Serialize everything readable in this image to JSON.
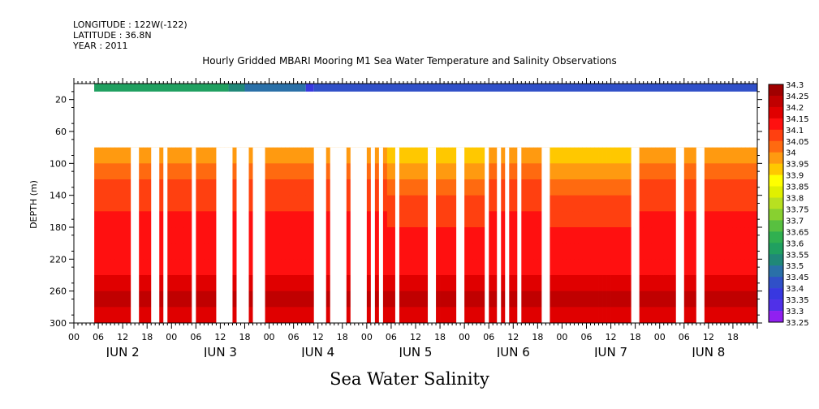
{
  "header": {
    "longitude": "LONGITUDE : 122W(-122)",
    "latitude": "LATITUDE : 36.8N",
    "year": "YEAR : 2011"
  },
  "chart_data": {
    "type": "heatmap",
    "title": "Hourly Gridded MBARI Mooring M1 Sea Water Temperature and Salinity Observations",
    "xlabel": "Sea Water Salinity",
    "ylabel": "DEPTH (m)",
    "ylim": [
      300,
      0
    ],
    "y_ticks": [
      20,
      60,
      100,
      140,
      180,
      220,
      260,
      300
    ],
    "x_start_hour": 0,
    "x_end_hour": 168,
    "x_hour_ticks": [
      0,
      6,
      12,
      18
    ],
    "x_days": [
      "JUN  2",
      "JUN  3",
      "JUN  4",
      "JUN  5",
      "JUN  6",
      "JUN  7",
      "JUN  8"
    ],
    "colorbar": {
      "levels": [
        34.3,
        34.25,
        34.2,
        34.15,
        34.1,
        34.05,
        34,
        33.95,
        33.9,
        33.85,
        33.8,
        33.75,
        33.7,
        33.65,
        33.6,
        33.55,
        33.5,
        33.45,
        33.4,
        33.35,
        33.3,
        33.25
      ],
      "colors": [
        "#a00000",
        "#c00000",
        "#e00000",
        "#ff1010",
        "#ff4010",
        "#ff6a10",
        "#ff9a10",
        "#ffc800",
        "#ffff00",
        "#e0f000",
        "#b8e020",
        "#88d030",
        "#58c040",
        "#30b050",
        "#20a060",
        "#208878",
        "#2a70a8",
        "#3050c8",
        "#3838e0",
        "#5030e8",
        "#9020f0",
        "#d000f0"
      ]
    },
    "surface_start_hour": 5,
    "deep_start_depth": 80,
    "surface_depth_range": [
      0,
      10
    ],
    "surface_layer": [
      {
        "from": 5,
        "to": 38,
        "value": 33.62
      },
      {
        "from": 38,
        "to": 42,
        "value": 33.55
      },
      {
        "from": 42,
        "to": 57,
        "value": 33.5
      },
      {
        "from": 57,
        "to": 59,
        "value": 33.4
      },
      {
        "from": 59,
        "to": 168,
        "value": 33.45
      }
    ],
    "gaps_hours": [
      [
        0,
        5
      ],
      [
        14,
        16
      ],
      [
        19,
        21
      ],
      [
        22,
        23
      ],
      [
        29,
        30
      ],
      [
        35,
        39
      ],
      [
        40,
        43
      ],
      [
        44,
        47
      ],
      [
        59,
        62
      ],
      [
        63,
        67
      ],
      [
        68,
        72
      ],
      [
        73,
        74
      ],
      [
        75,
        76
      ],
      [
        79,
        80
      ],
      [
        87,
        89
      ],
      [
        94,
        96
      ],
      [
        101,
        102
      ],
      [
        104,
        105
      ],
      [
        106,
        107
      ],
      [
        109,
        110
      ],
      [
        115,
        117
      ],
      [
        137,
        139
      ],
      [
        148,
        150
      ],
      [
        153,
        155
      ]
    ],
    "profile_depths": [
      80,
      100,
      120,
      140,
      160,
      180,
      200,
      220,
      240,
      260,
      280,
      300
    ],
    "profile_low_hours": [
      [
        77,
        102
      ],
      [
        117,
        137
      ]
    ],
    "profile_normal": [
      34.0,
      34.05,
      34.1,
      34.13,
      34.15,
      34.15,
      34.15,
      34.18,
      34.22,
      34.28,
      34.22,
      34.18
    ],
    "profile_low": [
      33.95,
      34.0,
      34.05,
      34.1,
      34.12,
      34.15,
      34.15,
      34.18,
      34.22,
      34.27,
      34.22,
      34.18
    ]
  }
}
